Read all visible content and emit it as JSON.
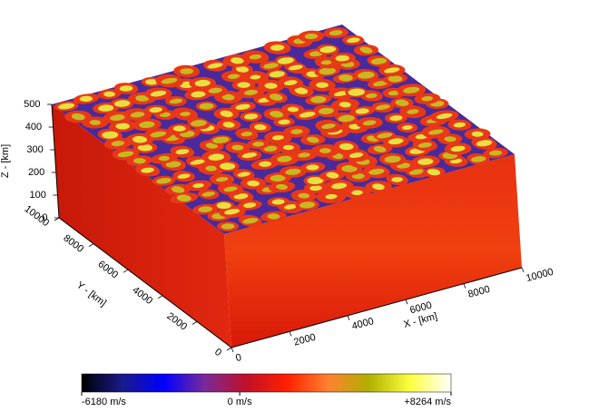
{
  "chart_data": {
    "type": "volume3d",
    "xlabel": "X - [km]",
    "ylabel": "Y - [km]",
    "zlabel": "Z - [km]",
    "xlim": [
      0,
      10000
    ],
    "ylim": [
      0,
      10000
    ],
    "zlim": [
      0,
      500
    ],
    "xticks": [
      0,
      2000,
      4000,
      6000,
      8000,
      10000
    ],
    "yticks": [
      0,
      2000,
      4000,
      6000,
      8000,
      10000
    ],
    "zticks": [
      0,
      100,
      200,
      300,
      400,
      500
    ],
    "clim": [
      -6180,
      8264
    ],
    "cticks": [
      {
        "value": -6180,
        "label": "-6180 m/s"
      },
      {
        "value": 0,
        "label": "0 m/s"
      },
      {
        "value": 8264,
        "label": "+8264 m/s"
      }
    ],
    "colormap": [
      "#000000",
      "#1a1a8c",
      "#0000ff",
      "#7a2a9a",
      "#c0102a",
      "#ff2000",
      "#ff8030",
      "#b0b000",
      "#ffff40",
      "#ffffff"
    ]
  }
}
